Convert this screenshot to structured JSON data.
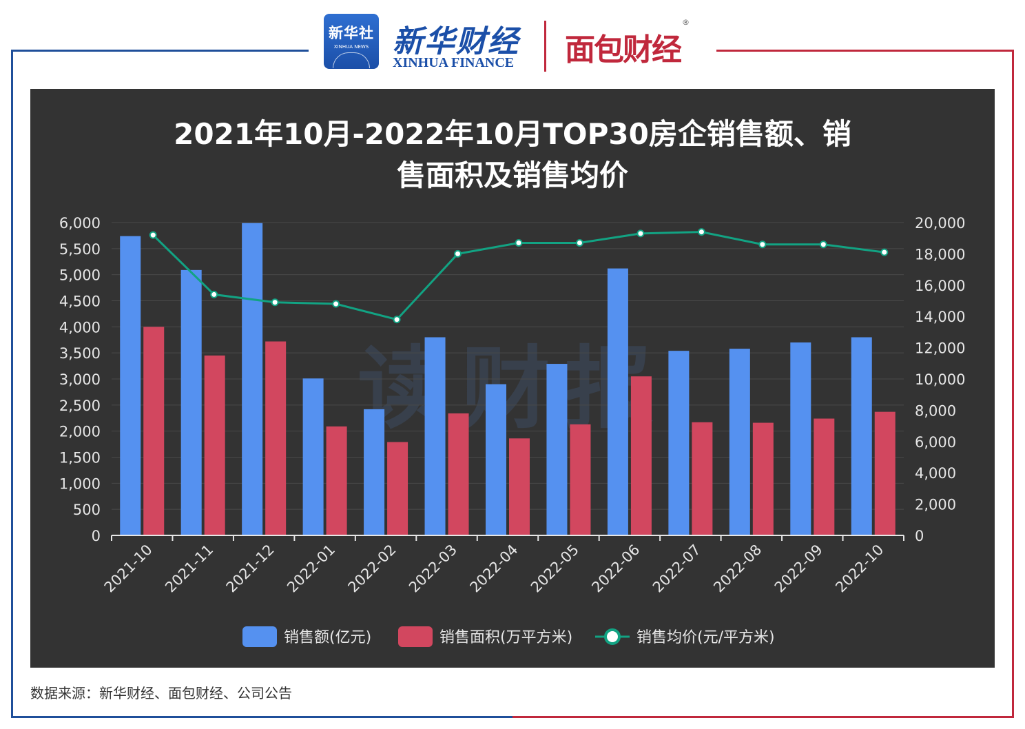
{
  "header": {
    "xinhua_badge_cn": "新华社",
    "xinhua_badge_en": "XINHUA NEWS",
    "xinhua_finance_cn": "新华财经",
    "xinhua_finance_en": "XINHUA FINANCE",
    "mianbao_cn": "面包财经",
    "registered_mark": "®"
  },
  "watermark": "读财报",
  "source_note": "数据来源：新华财经、面包财经、公司公告",
  "colors": {
    "panel": "#333333",
    "sales_amount": "#5591f0",
    "sales_area": "#d2475f",
    "avg_price": "#12a383",
    "frame_blue": "#1f4f9a",
    "frame_red": "#c0283c"
  },
  "chart_data": {
    "type": "bar",
    "title_lines": [
      "2021年10月-2022年10月TOP30房企销售额、销",
      "售面积及销售均价"
    ],
    "categories": [
      "2021-10",
      "2021-11",
      "2021-12",
      "2022-01",
      "2022-02",
      "2022-03",
      "2022-04",
      "2022-05",
      "2022-06",
      "2022-07",
      "2022-08",
      "2022-09",
      "2022-10"
    ],
    "series": [
      {
        "name": "销售额(亿元)",
        "type": "bar",
        "axis": "left",
        "values": [
          5740,
          5090,
          5990,
          3010,
          2420,
          3800,
          2900,
          3290,
          5120,
          3540,
          3580,
          3700,
          3800
        ]
      },
      {
        "name": "销售面积(万平方米)",
        "type": "bar",
        "axis": "left",
        "values": [
          4000,
          3450,
          3720,
          2090,
          1790,
          2340,
          1860,
          2130,
          3050,
          2170,
          2160,
          2240,
          2370
        ]
      },
      {
        "name": "销售均价(元/平方米)",
        "type": "line",
        "axis": "right",
        "values": [
          19200,
          15400,
          14900,
          14800,
          13800,
          18000,
          18700,
          18700,
          19300,
          19400,
          18600,
          18600,
          18100
        ]
      }
    ],
    "y_left": {
      "min": 0,
      "max": 6000,
      "ticks": [
        "0",
        "500",
        "1,000",
        "1,500",
        "2,000",
        "2,500",
        "3,000",
        "3,500",
        "4,000",
        "4,500",
        "5,000",
        "5,500",
        "6,000"
      ]
    },
    "y_right": {
      "min": 0,
      "max": 20000,
      "ticks": [
        "0",
        "2,000",
        "4,000",
        "6,000",
        "8,000",
        "10,000",
        "12,000",
        "14,000",
        "16,000",
        "18,000",
        "20,000"
      ]
    },
    "grid": true,
    "legend_position": "bottom"
  }
}
